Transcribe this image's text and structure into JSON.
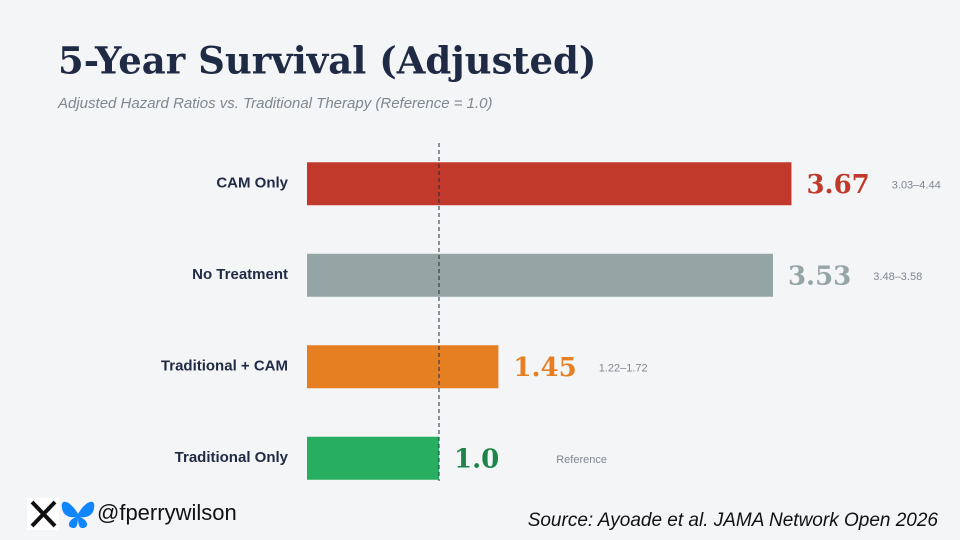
{
  "chart_data": {
    "type": "bar",
    "orientation": "horizontal",
    "title": "5-Year Survival (Adjusted)",
    "subtitle": "Adjusted Hazard Ratios vs. Traditional Therapy (Reference = 1.0)",
    "categories": [
      "CAM Only",
      "No Treatment",
      "Traditional + CAM",
      "Traditional Only"
    ],
    "values": [
      3.67,
      3.53,
      1.45,
      1.0
    ],
    "value_labels": [
      "3.67",
      "3.53",
      "1.45",
      "1.0"
    ],
    "interval_labels": [
      "3.03–4.44",
      "3.48–3.58",
      "1.22–1.72",
      "Reference"
    ],
    "colors": [
      "#c0392b",
      "#95a5a6",
      "#e67e22",
      "#27ae60"
    ],
    "reference": 1.0
  },
  "footer": {
    "handle": "@fperrywilson",
    "source": "Source: Ayoade et al. JAMA Network Open 2026"
  }
}
